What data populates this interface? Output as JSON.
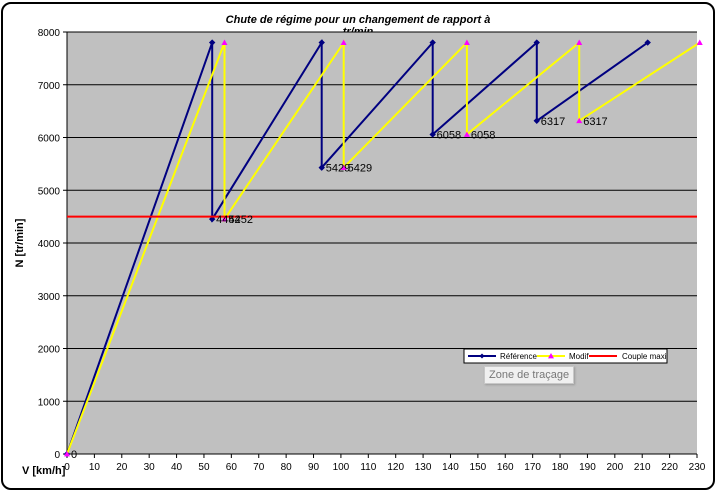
{
  "chart_data": {
    "type": "line",
    "title": "Chute de régime pour un changement de rapport à tr/min",
    "title_lines": [
      "Chute de régime pour un changement de rapport à",
      "tr/min"
    ],
    "xlabel": "V [km/h]",
    "ylabel": "N [tr/min]",
    "xlim": [
      0,
      230
    ],
    "ylim": [
      0,
      8000
    ],
    "x_ticks": [
      0,
      10,
      20,
      30,
      40,
      50,
      60,
      70,
      80,
      90,
      100,
      110,
      120,
      130,
      140,
      150,
      160,
      170,
      180,
      190,
      200,
      210,
      220,
      230
    ],
    "y_ticks": [
      0,
      1000,
      2000,
      3000,
      4000,
      5000,
      6000,
      7000,
      8000
    ],
    "grid": "horizontal",
    "background": "#c0c0c0",
    "legend_position": "bottom-right",
    "series": [
      {
        "name": "Référence",
        "color": "#000080",
        "marker": "diamond",
        "points": [
          [
            0,
            0
          ],
          [
            53,
            7800
          ],
          [
            53,
            4452
          ],
          [
            93,
            7800
          ],
          [
            93,
            5429
          ],
          [
            133.5,
            7800
          ],
          [
            133.5,
            6058
          ],
          [
            171.5,
            7800
          ],
          [
            171.5,
            6317
          ],
          [
            212,
            7800
          ]
        ]
      },
      {
        "name": "Modif",
        "color": "#ffff00",
        "marker": "triangle",
        "marker_color": "#ff00ff",
        "points": [
          [
            0,
            0
          ],
          [
            57.5,
            7800
          ],
          [
            57.5,
            4452
          ],
          [
            101,
            7800
          ],
          [
            101,
            5429
          ],
          [
            146,
            7800
          ],
          [
            146,
            6058
          ],
          [
            187,
            7800
          ],
          [
            187,
            6317
          ],
          [
            231,
            7800
          ]
        ]
      },
      {
        "name": "Couple maxi",
        "color": "#ff0000",
        "marker": "none",
        "points": [
          [
            0,
            4500
          ],
          [
            230,
            4500
          ]
        ]
      }
    ],
    "data_labels": [
      {
        "text": "0",
        "x": 0,
        "y": 0
      },
      {
        "text": "4452",
        "x": 53,
        "y": 4452
      },
      {
        "text": "4452",
        "x": 57.5,
        "y": 4452
      },
      {
        "text": "5429",
        "x": 93,
        "y": 5429
      },
      {
        "text": "5429",
        "x": 101,
        "y": 5429
      },
      {
        "text": "6058",
        "x": 133.5,
        "y": 6058
      },
      {
        "text": "6058",
        "x": 146,
        "y": 6058
      },
      {
        "text": "6317",
        "x": 171.5,
        "y": 6317
      },
      {
        "text": "6317",
        "x": 187,
        "y": 6317
      }
    ]
  },
  "tooltip": "Zone de traçage"
}
